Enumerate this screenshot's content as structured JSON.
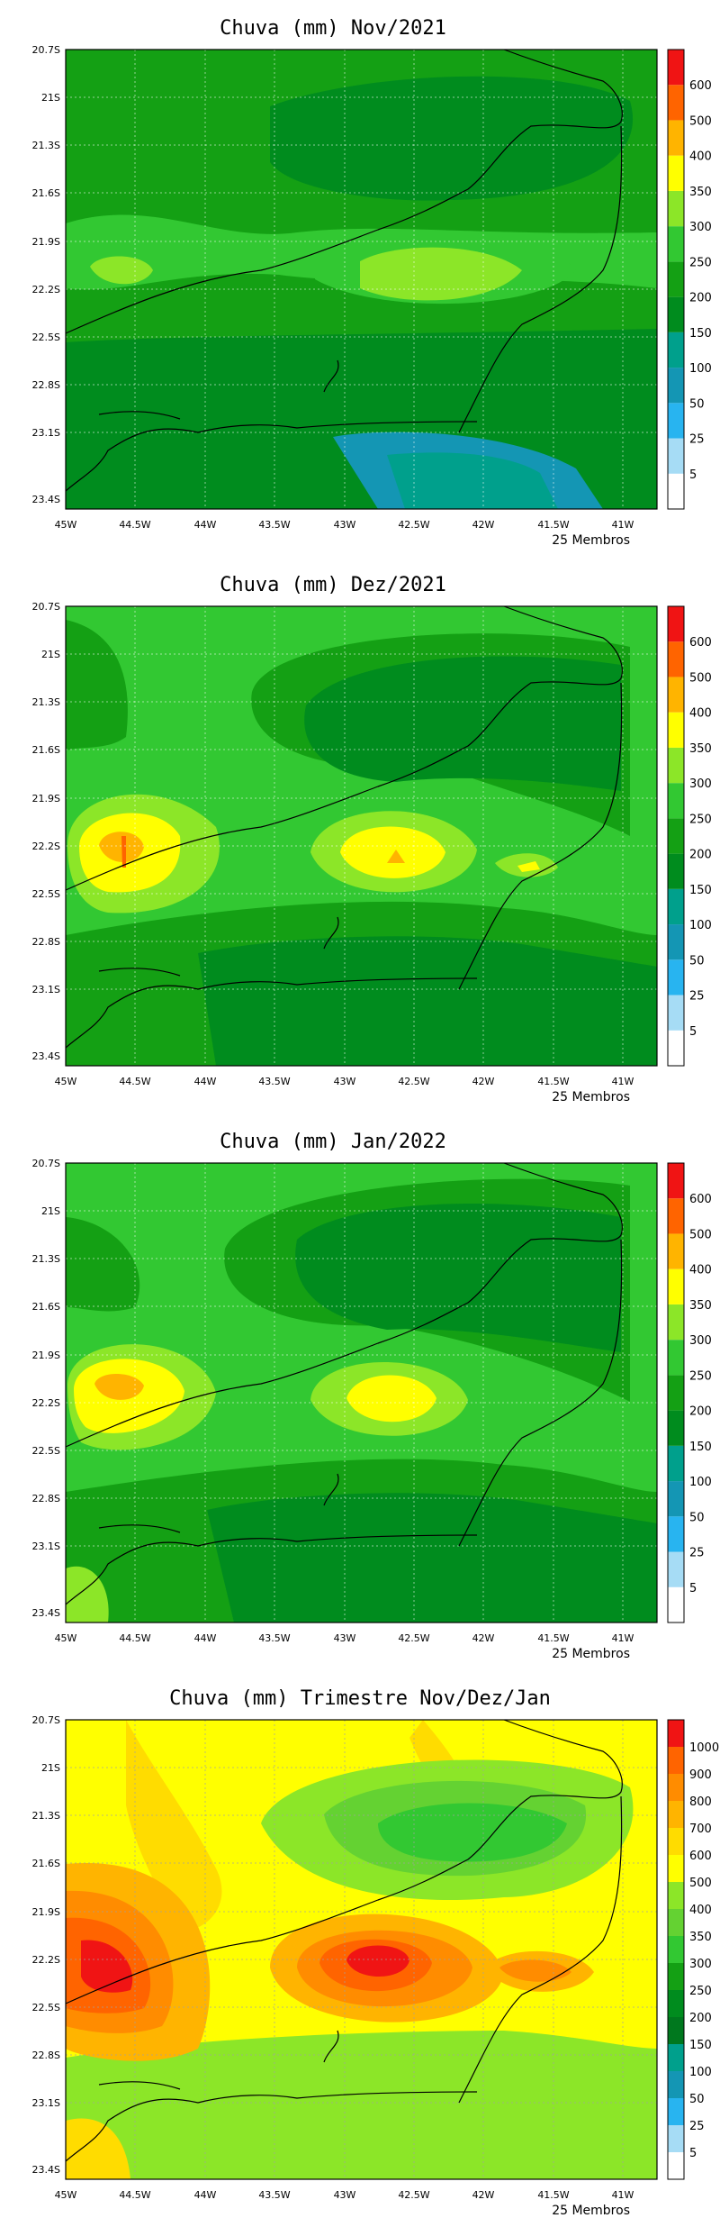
{
  "ensemble_note": "25 Membros",
  "lon_labels": [
    "45W",
    "44.5W",
    "44W",
    "43.5W",
    "43W",
    "42.5W",
    "42W",
    "41.5W",
    "41W"
  ],
  "lat_labels": [
    "20.7S",
    "21S",
    "21.3S",
    "21.6S",
    "21.9S",
    "22.2S",
    "22.5S",
    "22.8S",
    "23.1S",
    "23.4S"
  ],
  "maps": [
    {
      "title": "Chuva (mm) Nov/2021",
      "scale": [
        "5",
        "25",
        "50",
        "100",
        "150",
        "200",
        "250",
        "300",
        "350",
        "400",
        "500",
        "600"
      ],
      "scale_colors": [
        "#ffffff",
        "#a6dcf5",
        "#28b4f0",
        "#1496b4",
        "#00a08c",
        "#008c1e",
        "#14a014",
        "#32c832",
        "#8ce628",
        "#ffff00",
        "#ffb400",
        "#ff6400",
        "#f01414"
      ]
    },
    {
      "title": "Chuva (mm) Dez/2021",
      "scale": [
        "5",
        "25",
        "50",
        "100",
        "150",
        "200",
        "250",
        "300",
        "350",
        "400",
        "500",
        "600"
      ],
      "scale_colors": [
        "#ffffff",
        "#a6dcf5",
        "#28b4f0",
        "#1496b4",
        "#00a08c",
        "#008c1e",
        "#14a014",
        "#32c832",
        "#8ce628",
        "#ffff00",
        "#ffb400",
        "#ff6400",
        "#f01414"
      ]
    },
    {
      "title": "Chuva (mm) Jan/2022",
      "scale": [
        "5",
        "25",
        "50",
        "100",
        "150",
        "200",
        "250",
        "300",
        "350",
        "400",
        "500",
        "600"
      ],
      "scale_colors": [
        "#ffffff",
        "#a6dcf5",
        "#28b4f0",
        "#1496b4",
        "#00a08c",
        "#008c1e",
        "#14a014",
        "#32c832",
        "#8ce628",
        "#ffff00",
        "#ffb400",
        "#ff6400",
        "#f01414"
      ]
    },
    {
      "title": "Chuva (mm) Trimestre Nov/Dez/Jan",
      "scale": [
        "5",
        "25",
        "50",
        "100",
        "150",
        "200",
        "250",
        "300",
        "350",
        "400",
        "500",
        "600",
        "700",
        "800",
        "900",
        "1000"
      ],
      "scale_colors": [
        "#ffffff",
        "#a6dcf5",
        "#28b4f0",
        "#1496b4",
        "#00a08c",
        "#00781e",
        "#008c1e",
        "#14a014",
        "#32c832",
        "#64d232",
        "#8ce628",
        "#ffff00",
        "#ffdc00",
        "#ffb400",
        "#ff8c00",
        "#ff6400",
        "#f01414"
      ]
    }
  ]
}
